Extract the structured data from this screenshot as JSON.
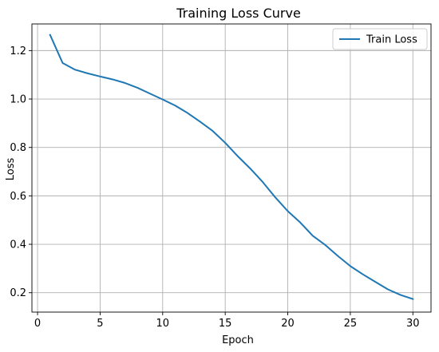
{
  "chart_data": {
    "type": "line",
    "title": "Training Loss Curve",
    "xlabel": "Epoch",
    "ylabel": "Loss",
    "xlim": [
      -0.45,
      31.45
    ],
    "ylim": [
      0.12,
      1.31
    ],
    "xticks": [
      0,
      5,
      10,
      15,
      20,
      25,
      30
    ],
    "yticks": [
      0.2,
      0.4,
      0.6,
      0.8,
      1.0,
      1.2
    ],
    "xtick_labels": [
      "0",
      "5",
      "10",
      "15",
      "20",
      "25",
      "30"
    ],
    "ytick_labels": [
      "0.2",
      "0.4",
      "0.6",
      "0.8",
      "1.0",
      "1.2"
    ],
    "grid": true,
    "legend": "upper right",
    "series": [
      {
        "name": "Train Loss",
        "color": "#1f77b4",
        "x": [
          1,
          2,
          3,
          4,
          5,
          6,
          7,
          8,
          9,
          10,
          11,
          12,
          13,
          14,
          15,
          16,
          17,
          18,
          19,
          20,
          21,
          22,
          23,
          24,
          25,
          26,
          27,
          28,
          29,
          30
        ],
        "y": [
          1.265,
          1.149,
          1.121,
          1.106,
          1.093,
          1.081,
          1.066,
          1.046,
          1.022,
          0.998,
          0.973,
          0.942,
          0.906,
          0.868,
          0.819,
          0.764,
          0.713,
          0.657,
          0.594,
          0.537,
          0.49,
          0.435,
          0.397,
          0.352,
          0.31,
          0.276,
          0.245,
          0.214,
          0.191,
          0.174
        ]
      }
    ]
  }
}
